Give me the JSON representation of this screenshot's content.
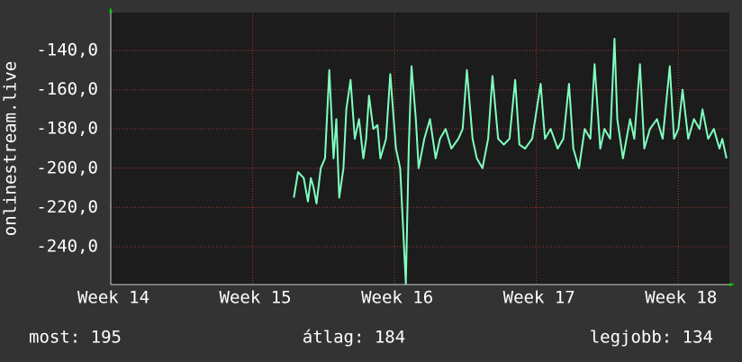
{
  "chart_data": {
    "type": "line",
    "y_label": "onlinestream.live",
    "x": [
      15.29,
      15.32,
      15.36,
      15.39,
      15.41,
      15.43,
      15.45,
      15.48,
      15.51,
      15.54,
      15.57,
      15.59,
      15.61,
      15.64,
      15.66,
      15.69,
      15.72,
      15.75,
      15.78,
      15.8,
      15.82,
      15.85,
      15.88,
      15.9,
      15.94,
      15.97,
      16.01,
      16.04,
      16.08,
      16.1,
      16.12,
      16.15,
      16.17,
      16.21,
      16.25,
      16.29,
      16.32,
      16.36,
      16.4,
      16.45,
      16.48,
      16.51,
      16.55,
      16.58,
      16.62,
      16.66,
      16.69,
      16.73,
      16.77,
      16.81,
      16.85,
      16.88,
      16.92,
      16.97,
      17.03,
      17.06,
      17.1,
      17.15,
      17.19,
      17.23,
      17.26,
      17.3,
      17.34,
      17.38,
      17.41,
      17.45,
      17.48,
      17.52,
      17.55,
      17.57,
      17.61,
      17.66,
      17.69,
      17.73,
      17.76,
      17.8,
      17.85,
      17.89,
      17.94,
      17.97,
      18.0,
      18.03,
      18.07,
      18.11,
      18.15,
      18.17,
      18.21,
      18.25,
      18.29,
      18.31,
      18.34
    ],
    "series": [
      {
        "color": "#80ffbf",
        "values": [
          -215,
          -202,
          -205,
          -217,
          -205,
          -210,
          -218,
          -200,
          -195,
          -150,
          -195,
          -175,
          -215,
          -200,
          -170,
          -155,
          -185,
          -175,
          -195,
          -185,
          -163,
          -180,
          -178,
          -195,
          -185,
          -152,
          -190,
          -200,
          -259,
          -190,
          -148,
          -175,
          -200,
          -185,
          -175,
          -195,
          -185,
          -180,
          -190,
          -185,
          -180,
          -150,
          -185,
          -195,
          -200,
          -185,
          -153,
          -185,
          -188,
          -185,
          -155,
          -188,
          -190,
          -185,
          -157,
          -185,
          -180,
          -190,
          -185,
          -157,
          -190,
          -200,
          -180,
          -185,
          -147,
          -190,
          -180,
          -185,
          -134,
          -175,
          -195,
          -175,
          -185,
          -147,
          -190,
          -180,
          -175,
          -185,
          -148,
          -185,
          -180,
          -160,
          -185,
          -175,
          -180,
          -170,
          -185,
          -180,
          -190,
          -185,
          -195
        ]
      }
    ],
    "xlim": [
      14,
      18.36
    ],
    "xticks": [
      {
        "value": 14,
        "label": "Week 14"
      },
      {
        "value": 15,
        "label": "Week 15"
      },
      {
        "value": 16,
        "label": "Week 16"
      },
      {
        "value": 17,
        "label": "Week 17"
      },
      {
        "value": 18,
        "label": "Week 18"
      }
    ],
    "ylim": [
      -259.3,
      -120.7
    ],
    "yticks": [
      {
        "value": -140,
        "label": "-140,0"
      },
      {
        "value": -160,
        "label": "-160,0"
      },
      {
        "value": -180,
        "label": "-180,0"
      },
      {
        "value": -200,
        "label": "-200,0"
      },
      {
        "value": -220,
        "label": "-220,0"
      },
      {
        "value": -240,
        "label": "-240,0"
      }
    ],
    "grid": true,
    "footer": [
      "most: 195",
      "átlag: 184",
      "legjobb: 134"
    ]
  }
}
